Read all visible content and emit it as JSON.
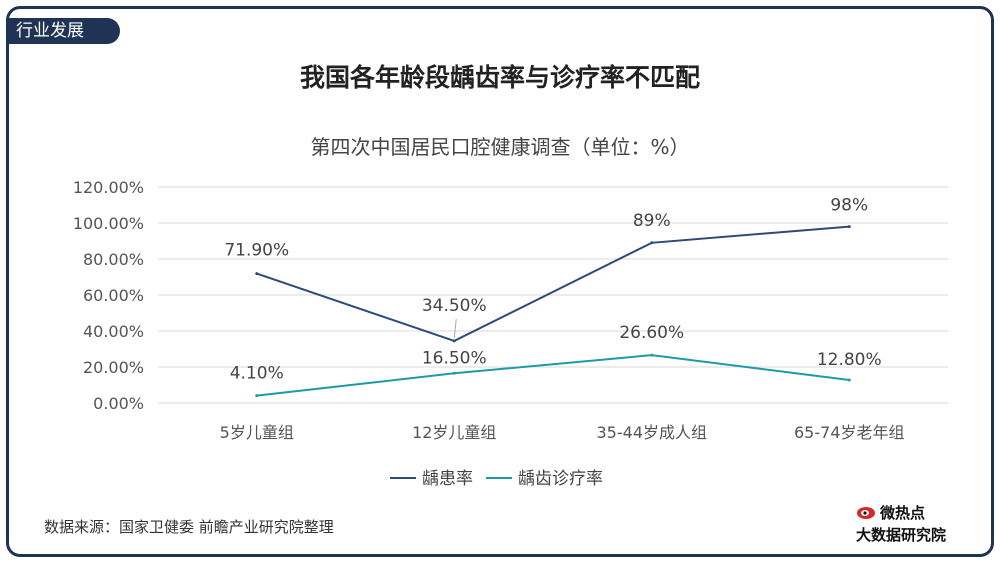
{
  "header": {
    "tag": "行业发展"
  },
  "main_title": "我国各年龄段龋齿率与诊疗率不匹配",
  "source": "数据来源：国家卫健委 前瞻产业研究院整理",
  "logo": {
    "line1": "微热点",
    "line2": "大数据研究院",
    "icon": "weibo-eye-icon"
  },
  "colors": {
    "series1": "#2e4a7a",
    "series2": "#1a9ca8",
    "frame": "#1f3355"
  },
  "chart_data": {
    "type": "line",
    "title": "第四次中国居民口腔健康调查（单位：%）",
    "categories": [
      "5岁儿童组",
      "12岁儿童组",
      "35-44岁成人组",
      "65-74岁老年组"
    ],
    "ylim": [
      0,
      120
    ],
    "yticks": [
      "0.00%",
      "20.00%",
      "40.00%",
      "60.00%",
      "80.00%",
      "100.00%",
      "120.00%"
    ],
    "grid": true,
    "legend_position": "bottom",
    "series": [
      {
        "name": "龋患率",
        "values": [
          71.9,
          34.5,
          89,
          98
        ],
        "labels": [
          "71.90%",
          "34.50%",
          "89%",
          "98%"
        ]
      },
      {
        "name": "龋齿诊疗率",
        "values": [
          4.1,
          16.5,
          26.6,
          12.8
        ],
        "labels": [
          "4.10%",
          "16.50%",
          "26.60%",
          "12.80%"
        ]
      }
    ]
  }
}
